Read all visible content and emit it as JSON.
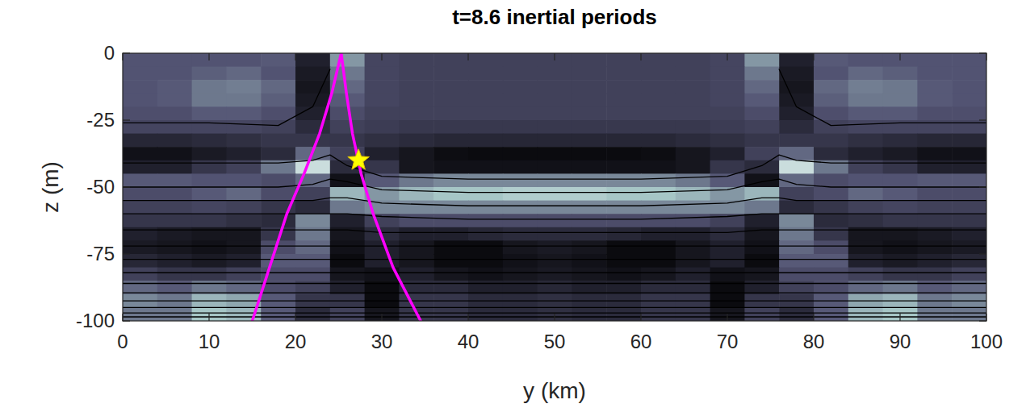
{
  "chart_data": {
    "type": "heatmap",
    "title": "t=8.6 inertial periods",
    "x_label": "y (km)",
    "y_label": "z (m)",
    "xlim": [
      0,
      100
    ],
    "ylim": [
      -100,
      0
    ],
    "xticks": [
      0,
      10,
      20,
      30,
      40,
      50,
      60,
      70,
      80,
      90,
      100
    ],
    "yticks": [
      -100,
      -75,
      -50,
      -25,
      0
    ],
    "grid": false,
    "cells": {
      "clim": [
        0,
        1
      ],
      "x": [
        2,
        6,
        10,
        14,
        18,
        22,
        26,
        30,
        34,
        38,
        42,
        46,
        50,
        54,
        58,
        62,
        66,
        70,
        74,
        78,
        82,
        86,
        90,
        94,
        98
      ],
      "y": [
        -2.5,
        -7.5,
        -12.5,
        -17.5,
        -22.5,
        -27.5,
        -32.5,
        -37.5,
        -42.5,
        -47.5,
        -52.5,
        -57.5,
        -62.5,
        -67.5,
        -72.5,
        -77.5,
        -82.5,
        -87.5,
        -92.5,
        -97.5
      ],
      "values": [
        [
          0.38,
          0.38,
          0.38,
          0.38,
          0.4,
          0.15,
          0.6,
          0.32,
          0.3,
          0.3,
          0.3,
          0.3,
          0.3,
          0.3,
          0.3,
          0.3,
          0.3,
          0.32,
          0.6,
          0.15,
          0.4,
          0.38,
          0.38,
          0.38,
          0.38
        ],
        [
          0.38,
          0.38,
          0.42,
          0.45,
          0.38,
          0.12,
          0.5,
          0.32,
          0.3,
          0.3,
          0.3,
          0.3,
          0.3,
          0.3,
          0.3,
          0.3,
          0.3,
          0.32,
          0.5,
          0.12,
          0.38,
          0.45,
          0.42,
          0.38,
          0.38
        ],
        [
          0.38,
          0.4,
          0.5,
          0.52,
          0.45,
          0.1,
          0.45,
          0.32,
          0.3,
          0.3,
          0.3,
          0.3,
          0.3,
          0.3,
          0.3,
          0.3,
          0.3,
          0.32,
          0.45,
          0.1,
          0.45,
          0.52,
          0.5,
          0.4,
          0.38
        ],
        [
          0.38,
          0.4,
          0.5,
          0.5,
          0.42,
          0.12,
          0.4,
          0.32,
          0.3,
          0.3,
          0.3,
          0.3,
          0.3,
          0.3,
          0.3,
          0.3,
          0.3,
          0.32,
          0.4,
          0.12,
          0.42,
          0.5,
          0.5,
          0.4,
          0.38
        ],
        [
          0.36,
          0.36,
          0.4,
          0.4,
          0.36,
          0.15,
          0.35,
          0.3,
          0.3,
          0.3,
          0.3,
          0.3,
          0.3,
          0.3,
          0.3,
          0.3,
          0.3,
          0.3,
          0.35,
          0.15,
          0.36,
          0.4,
          0.4,
          0.36,
          0.36
        ],
        [
          0.32,
          0.32,
          0.32,
          0.32,
          0.3,
          0.2,
          0.3,
          0.28,
          0.26,
          0.26,
          0.26,
          0.26,
          0.26,
          0.26,
          0.26,
          0.26,
          0.26,
          0.28,
          0.3,
          0.2,
          0.3,
          0.32,
          0.32,
          0.32,
          0.32
        ],
        [
          0.18,
          0.18,
          0.2,
          0.22,
          0.25,
          0.25,
          0.25,
          0.22,
          0.2,
          0.18,
          0.18,
          0.18,
          0.18,
          0.18,
          0.18,
          0.18,
          0.2,
          0.22,
          0.25,
          0.25,
          0.25,
          0.22,
          0.2,
          0.18,
          0.18
        ],
        [
          0.08,
          0.08,
          0.12,
          0.15,
          0.2,
          0.45,
          0.3,
          0.15,
          0.1,
          0.06,
          0.05,
          0.05,
          0.05,
          0.05,
          0.05,
          0.06,
          0.1,
          0.15,
          0.3,
          0.45,
          0.2,
          0.15,
          0.12,
          0.08,
          0.08
        ],
        [
          0.15,
          0.15,
          0.25,
          0.3,
          0.5,
          0.85,
          0.2,
          0.25,
          0.1,
          0.08,
          0.08,
          0.08,
          0.08,
          0.08,
          0.08,
          0.08,
          0.1,
          0.25,
          0.2,
          0.85,
          0.5,
          0.3,
          0.25,
          0.15,
          0.15
        ],
        [
          0.4,
          0.4,
          0.38,
          0.38,
          0.35,
          0.45,
          0.08,
          0.4,
          0.5,
          0.55,
          0.55,
          0.55,
          0.55,
          0.55,
          0.55,
          0.55,
          0.5,
          0.4,
          0.08,
          0.45,
          0.35,
          0.38,
          0.38,
          0.4,
          0.4
        ],
        [
          0.35,
          0.35,
          0.4,
          0.45,
          0.35,
          0.3,
          0.7,
          0.6,
          0.7,
          0.75,
          0.75,
          0.78,
          0.78,
          0.78,
          0.75,
          0.75,
          0.7,
          0.6,
          0.7,
          0.3,
          0.35,
          0.45,
          0.4,
          0.35,
          0.35
        ],
        [
          0.3,
          0.3,
          0.32,
          0.3,
          0.25,
          0.2,
          0.5,
          0.55,
          0.55,
          0.55,
          0.55,
          0.55,
          0.55,
          0.55,
          0.55,
          0.55,
          0.55,
          0.55,
          0.5,
          0.2,
          0.25,
          0.3,
          0.32,
          0.3,
          0.3
        ],
        [
          0.25,
          0.25,
          0.25,
          0.22,
          0.2,
          0.55,
          0.15,
          0.3,
          0.35,
          0.35,
          0.35,
          0.35,
          0.35,
          0.35,
          0.35,
          0.35,
          0.35,
          0.3,
          0.15,
          0.55,
          0.2,
          0.22,
          0.25,
          0.25,
          0.25
        ],
        [
          0.15,
          0.12,
          0.1,
          0.1,
          0.25,
          0.5,
          0.1,
          0.2,
          0.15,
          0.15,
          0.18,
          0.2,
          0.2,
          0.2,
          0.18,
          0.15,
          0.15,
          0.2,
          0.1,
          0.5,
          0.25,
          0.1,
          0.1,
          0.12,
          0.15
        ],
        [
          0.12,
          0.1,
          0.08,
          0.1,
          0.35,
          0.45,
          0.08,
          0.15,
          0.1,
          0.05,
          0.05,
          0.1,
          0.12,
          0.1,
          0.05,
          0.05,
          0.1,
          0.15,
          0.08,
          0.45,
          0.35,
          0.1,
          0.08,
          0.1,
          0.12
        ],
        [
          0.18,
          0.15,
          0.12,
          0.15,
          0.4,
          0.4,
          0.05,
          0.15,
          0.1,
          0.05,
          0.05,
          0.08,
          0.1,
          0.08,
          0.05,
          0.05,
          0.1,
          0.15,
          0.05,
          0.4,
          0.4,
          0.15,
          0.12,
          0.15,
          0.18
        ],
        [
          0.3,
          0.25,
          0.25,
          0.3,
          0.35,
          0.35,
          0.1,
          0.08,
          0.15,
          0.1,
          0.08,
          0.1,
          0.12,
          0.1,
          0.08,
          0.1,
          0.15,
          0.08,
          0.1,
          0.35,
          0.35,
          0.3,
          0.25,
          0.25,
          0.3
        ],
        [
          0.45,
          0.4,
          0.5,
          0.45,
          0.35,
          0.3,
          0.15,
          0.05,
          0.2,
          0.2,
          0.15,
          0.15,
          0.18,
          0.15,
          0.15,
          0.2,
          0.2,
          0.05,
          0.15,
          0.3,
          0.35,
          0.45,
          0.5,
          0.4,
          0.45
        ],
        [
          0.55,
          0.5,
          0.7,
          0.65,
          0.4,
          0.25,
          0.25,
          0.05,
          0.25,
          0.25,
          0.2,
          0.2,
          0.22,
          0.2,
          0.2,
          0.25,
          0.25,
          0.05,
          0.25,
          0.25,
          0.4,
          0.65,
          0.7,
          0.5,
          0.55
        ],
        [
          0.5,
          0.5,
          0.75,
          0.7,
          0.4,
          0.2,
          0.3,
          0.1,
          0.25,
          0.25,
          0.2,
          0.2,
          0.22,
          0.2,
          0.2,
          0.25,
          0.25,
          0.1,
          0.3,
          0.2,
          0.4,
          0.7,
          0.75,
          0.5,
          0.5
        ]
      ]
    },
    "series": [
      {
        "type": "line",
        "color": "#000000",
        "x": [
          0,
          10,
          18,
          22,
          24,
          26,
          30,
          40,
          50,
          60,
          70,
          74,
          76,
          78,
          82,
          90,
          100
        ],
        "values": [
          -26,
          -26,
          -27,
          -20,
          -6,
          null,
          null,
          null,
          null,
          null,
          null,
          null,
          -6,
          -20,
          -27,
          -26,
          -26
        ]
      },
      {
        "type": "line",
        "color": "#000000",
        "x": [
          0,
          10,
          18,
          22,
          24,
          26,
          30,
          40,
          50,
          60,
          70,
          74,
          76,
          78,
          82,
          90,
          100
        ],
        "values": [
          -41,
          -41,
          -41,
          -40,
          -38,
          -42,
          -46,
          -47,
          -47,
          -47,
          -46,
          -42,
          -38,
          -40,
          -41,
          -41,
          -41
        ]
      },
      {
        "type": "line",
        "color": "#000000",
        "x": [
          0,
          10,
          18,
          22,
          24,
          26,
          30,
          40,
          50,
          60,
          70,
          74,
          76,
          78,
          82,
          90,
          100
        ],
        "values": [
          -50,
          -50,
          -50,
          -49,
          -47,
          -48,
          -51,
          -52,
          -52,
          -52,
          -51,
          -48,
          -47,
          -49,
          -50,
          -50,
          -50
        ]
      },
      {
        "type": "line",
        "color": "#000000",
        "x": [
          0,
          10,
          18,
          22,
          24,
          26,
          30,
          40,
          50,
          60,
          70,
          74,
          76,
          78,
          82,
          90,
          100
        ],
        "values": [
          -55,
          -55,
          -55,
          -55,
          -54,
          -54,
          -56,
          -57,
          -57,
          -57,
          -56,
          -54,
          -54,
          -55,
          -55,
          -55,
          -55
        ]
      },
      {
        "type": "line",
        "color": "#000000",
        "x": [
          0,
          10,
          18,
          22,
          24,
          26,
          30,
          40,
          50,
          60,
          70,
          74,
          76,
          78,
          82,
          90,
          100
        ],
        "values": [
          -60,
          -60,
          -60,
          -60,
          -60,
          -60,
          -61,
          -62,
          -62,
          -62,
          -61,
          -60,
          -60,
          -60,
          -60,
          -60,
          -60
        ]
      },
      {
        "type": "line",
        "color": "#000000",
        "x": [
          0,
          10,
          18,
          22,
          24,
          26,
          30,
          40,
          50,
          60,
          70,
          74,
          76,
          78,
          82,
          90,
          100
        ],
        "values": [
          -66,
          -66,
          -66,
          -66,
          -66,
          -66,
          -67,
          -67,
          -67,
          -67,
          -67,
          -66,
          -66,
          -66,
          -66,
          -66,
          -66
        ]
      },
      {
        "type": "line",
        "color": "#000000",
        "x": [
          0,
          100
        ],
        "values": [
          -72,
          -72
        ]
      },
      {
        "type": "line",
        "color": "#000000",
        "x": [
          0,
          100
        ],
        "values": [
          -77,
          -77
        ]
      },
      {
        "type": "line",
        "color": "#000000",
        "x": [
          0,
          100
        ],
        "values": [
          -82,
          -82
        ]
      },
      {
        "type": "line",
        "color": "#000000",
        "x": [
          0,
          100
        ],
        "values": [
          -86,
          -86
        ]
      },
      {
        "type": "line",
        "color": "#000000",
        "x": [
          0,
          100
        ],
        "values": [
          -89.5,
          -89.5
        ]
      },
      {
        "type": "line",
        "color": "#000000",
        "x": [
          0,
          100
        ],
        "values": [
          -92.5,
          -92.5
        ]
      },
      {
        "type": "line",
        "color": "#000000",
        "x": [
          0,
          100
        ],
        "values": [
          -95,
          -95
        ]
      },
      {
        "type": "line",
        "color": "#000000",
        "x": [
          0,
          100
        ],
        "values": [
          -97,
          -97
        ]
      },
      {
        "type": "line",
        "color": "#000000",
        "x": [
          0,
          100
        ],
        "values": [
          -98.5,
          -98.5
        ]
      },
      {
        "type": "line",
        "color": "#ff00ff",
        "x": [
          25.3,
          24.2,
          22.8,
          21,
          19,
          17,
          15
        ],
        "values": [
          0,
          -15,
          -30,
          -45,
          -60,
          -80,
          -100
        ]
      },
      {
        "type": "line",
        "color": "#ff00ff",
        "x": [
          25.3,
          25.9,
          26.6,
          27.6,
          29.0,
          31.3,
          34.5
        ],
        "values": [
          0,
          -15,
          -30,
          -45,
          -60,
          -80,
          -100
        ]
      },
      {
        "type": "scatter",
        "marker": "star",
        "color": "#ffff00",
        "x": [
          27.3
        ],
        "values": [
          -40
        ]
      }
    ]
  }
}
